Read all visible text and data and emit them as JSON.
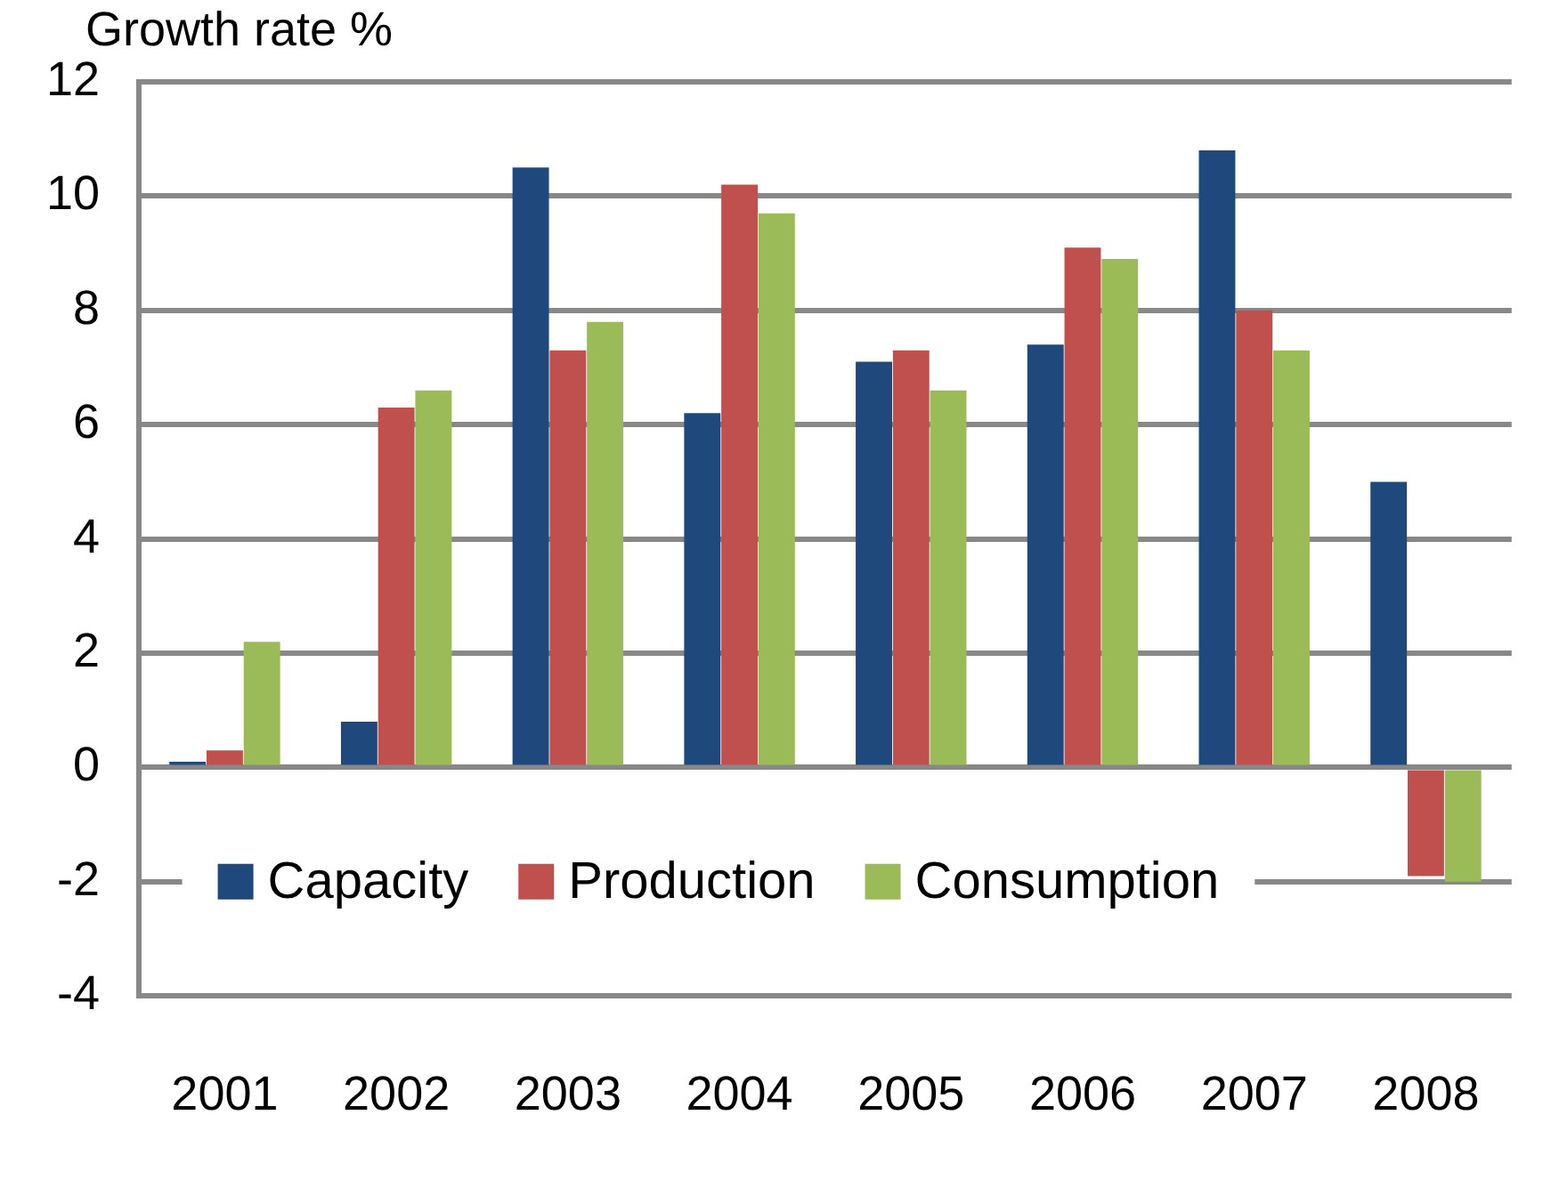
{
  "chart_data": {
    "type": "bar",
    "ylabel": "Growth rate %",
    "categories": [
      "2001",
      "2002",
      "2003",
      "2004",
      "2005",
      "2006",
      "2007",
      "2008"
    ],
    "series": [
      {
        "name": "Capacity",
        "color": "#1f497d",
        "values": [
          0.1,
          0.8,
          10.5,
          6.2,
          7.1,
          7.4,
          10.8,
          5.0
        ]
      },
      {
        "name": "Production",
        "color": "#c0504d",
        "values": [
          0.3,
          6.3,
          7.3,
          10.2,
          7.3,
          9.1,
          8.0,
          -1.9
        ]
      },
      {
        "name": "Consumption",
        "color": "#9bbb59",
        "values": [
          2.2,
          6.6,
          7.8,
          9.7,
          6.6,
          8.9,
          7.3,
          -2.0
        ]
      }
    ],
    "ylim": [
      -4,
      12
    ],
    "yticks": [
      -4,
      -2,
      0,
      2,
      4,
      6,
      8,
      10,
      12
    ],
    "grid": "y",
    "legend": "bottom"
  }
}
